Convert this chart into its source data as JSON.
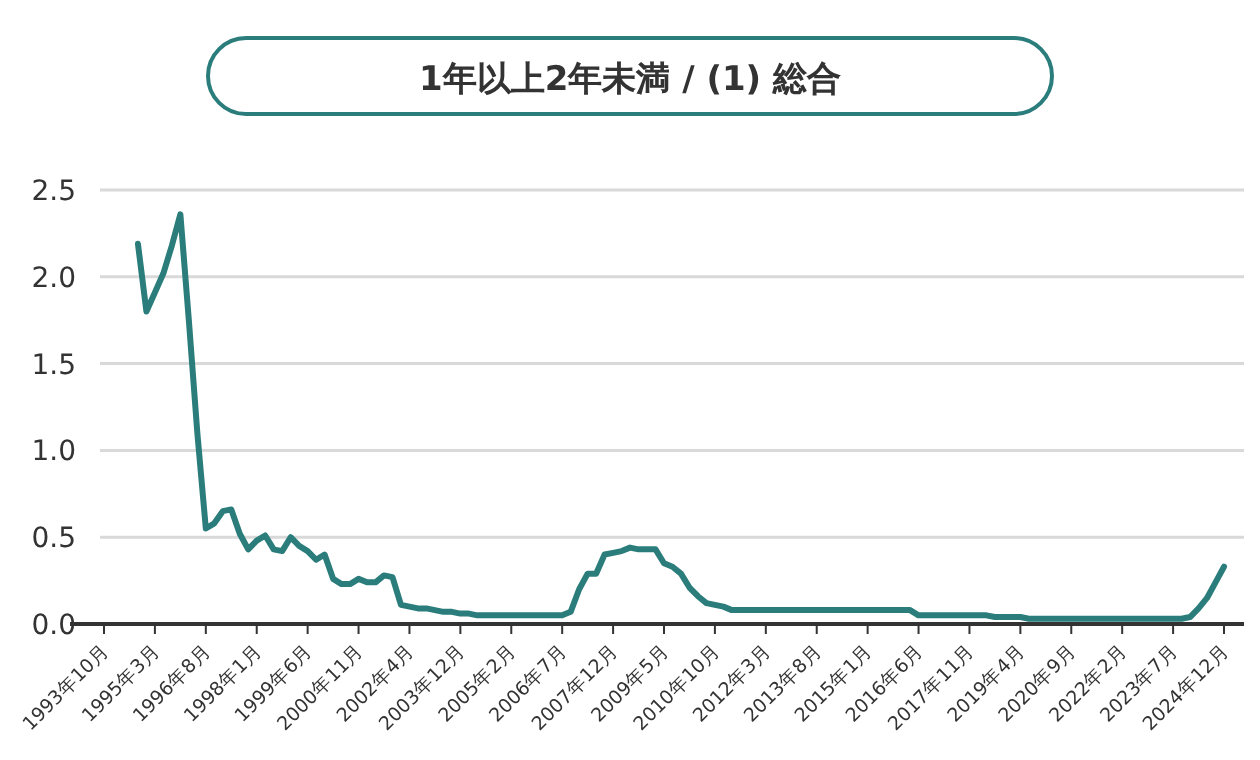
{
  "chart_data": {
    "type": "line",
    "title": "1年以上2年未満 / (1) 総合",
    "categories": [
      "1993年10月",
      null,
      null,
      null,
      null,
      null,
      "1995年3月",
      null,
      null,
      null,
      null,
      null,
      "1996年8月",
      null,
      null,
      null,
      null,
      null,
      "1998年1月",
      null,
      null,
      null,
      null,
      null,
      "1999年6月",
      null,
      null,
      null,
      null,
      null,
      "2000年11月",
      null,
      null,
      null,
      null,
      null,
      "2002年4月",
      null,
      null,
      null,
      null,
      null,
      "2003年12月",
      null,
      null,
      null,
      null,
      null,
      "2005年2月",
      null,
      null,
      null,
      null,
      null,
      "2006年7月",
      null,
      null,
      null,
      null,
      null,
      "2007年12月",
      null,
      null,
      null,
      null,
      null,
      "2009年5月",
      null,
      null,
      null,
      null,
      null,
      "2010年10月",
      null,
      null,
      null,
      null,
      null,
      "2012年3月",
      null,
      null,
      null,
      null,
      null,
      "2013年8月",
      null,
      null,
      null,
      null,
      null,
      "2015年1月",
      null,
      null,
      null,
      null,
      null,
      "2016年6月",
      null,
      null,
      null,
      null,
      null,
      "2017年11月",
      null,
      null,
      null,
      null,
      null,
      "2019年4月",
      null,
      null,
      null,
      null,
      null,
      "2020年9月",
      null,
      null,
      null,
      null,
      null,
      "2022年2月",
      null,
      null,
      null,
      null,
      null,
      "2023年7月",
      null,
      null,
      null,
      null,
      null,
      "2024年12月"
    ],
    "values": [
      null,
      null,
      null,
      null,
      2.19,
      1.8,
      1.91,
      2.02,
      2.18,
      2.36,
      1.75,
      1.1,
      0.55,
      0.58,
      0.65,
      0.66,
      0.52,
      0.43,
      0.48,
      0.51,
      0.43,
      0.42,
      0.5,
      0.45,
      0.42,
      0.37,
      0.4,
      0.26,
      0.23,
      0.23,
      0.26,
      0.24,
      0.24,
      0.28,
      0.27,
      0.11,
      0.1,
      0.09,
      0.09,
      0.08,
      0.07,
      0.07,
      0.06,
      0.06,
      0.05,
      0.05,
      0.05,
      0.05,
      0.05,
      0.05,
      0.05,
      0.05,
      0.05,
      0.05,
      0.05,
      0.07,
      0.2,
      0.29,
      0.29,
      0.4,
      0.41,
      0.42,
      0.44,
      0.43,
      0.43,
      0.43,
      0.35,
      0.33,
      0.29,
      0.21,
      0.16,
      0.12,
      0.11,
      0.1,
      0.08,
      0.08,
      0.08,
      0.08,
      0.08,
      0.08,
      0.08,
      0.08,
      0.08,
      0.08,
      0.08,
      0.08,
      0.08,
      0.08,
      0.08,
      0.08,
      0.08,
      0.08,
      0.08,
      0.08,
      0.08,
      0.08,
      0.05,
      0.05,
      0.05,
      0.05,
      0.05,
      0.05,
      0.05,
      0.05,
      0.05,
      0.04,
      0.04,
      0.04,
      0.04,
      0.03,
      0.03,
      0.03,
      0.03,
      0.03,
      0.03,
      0.03,
      0.03,
      0.03,
      0.03,
      0.03,
      0.03,
      0.03,
      0.03,
      0.03,
      0.03,
      0.03,
      0.03,
      0.03,
      0.04,
      0.09,
      0.15,
      0.24,
      0.33
    ],
    "color": "#2a7d7b",
    "ylim": [
      0,
      2.5
    ],
    "yticks": [
      {
        "value": 0,
        "label": "0.0"
      },
      0.5,
      {
        "value": 1,
        "label": "1.0"
      },
      1.5,
      {
        "value": 2,
        "label": "2.0"
      },
      2.5
    ],
    "grid": "y"
  }
}
